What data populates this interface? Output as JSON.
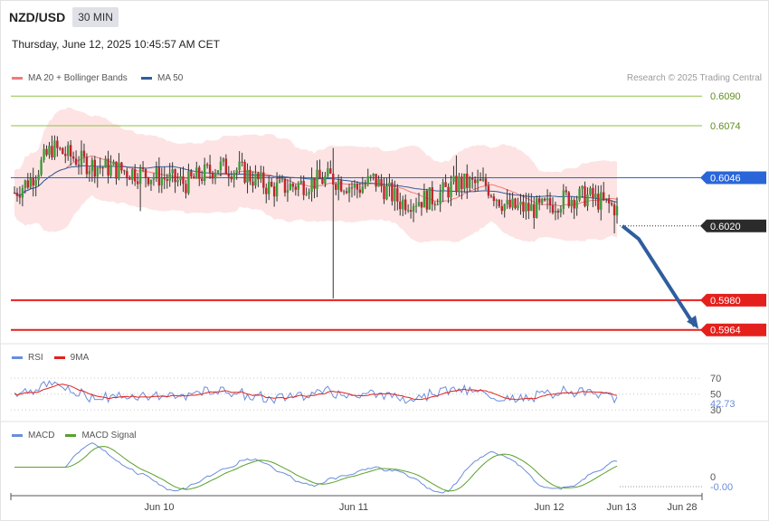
{
  "header": {
    "symbol": "NZD/USD",
    "timeframe": "30 MIN",
    "datetime": "Thursday, June 12, 2025 10:45:57 AM CET"
  },
  "legend": {
    "ma20": "MA 20 + Bollinger Bands",
    "ma50": "MA 50",
    "ma20_color": "#f27b7b",
    "ma50_color": "#2f5e9e"
  },
  "copyright": "Research © 2025 Trading Central",
  "chart_data": [
    {
      "type": "candlestick",
      "ylim": [
        0.5958,
        0.6094
      ],
      "price_levels": [
        {
          "value": 0.609,
          "label": "0.6090",
          "kind": "target",
          "color": "#8fc043"
        },
        {
          "value": 0.6074,
          "label": "0.6074",
          "kind": "target",
          "color": "#8fc043"
        },
        {
          "value": 0.6046,
          "label": "0.6046",
          "kind": "pivot",
          "color": "#2a66d9"
        },
        {
          "value": 0.602,
          "label": "0.6020",
          "kind": "last",
          "color": "#2b2b2b"
        },
        {
          "value": 0.598,
          "label": "0.5980",
          "kind": "support",
          "color": "#e4201c"
        },
        {
          "value": 0.5964,
          "label": "0.5964",
          "kind": "support",
          "color": "#e4201c"
        }
      ],
      "forecast_arrow": [
        [
          0.602,
          0
        ],
        [
          0.6013,
          1
        ],
        [
          0.5966,
          2
        ]
      ],
      "forecast_color": "#2f5e9e",
      "x_labels": [
        "Jun 10",
        "Jun 11",
        "Jun 12",
        "Jun 13",
        "Jun 28"
      ]
    },
    {
      "type": "line",
      "name": "RSI",
      "series": [
        {
          "name": "RSI",
          "color": "#6a8ddc"
        },
        {
          "name": "9MA",
          "color": "#e4201c"
        }
      ],
      "levels": [
        70,
        50,
        30
      ],
      "last_value": "42.73"
    },
    {
      "type": "line",
      "name": "MACD",
      "series": [
        {
          "name": "MACD",
          "color": "#6a8ddc"
        },
        {
          "name": "MACD Signal",
          "color": "#5aa02c"
        }
      ],
      "zero_label": "0",
      "last_value": "-0.00"
    }
  ]
}
